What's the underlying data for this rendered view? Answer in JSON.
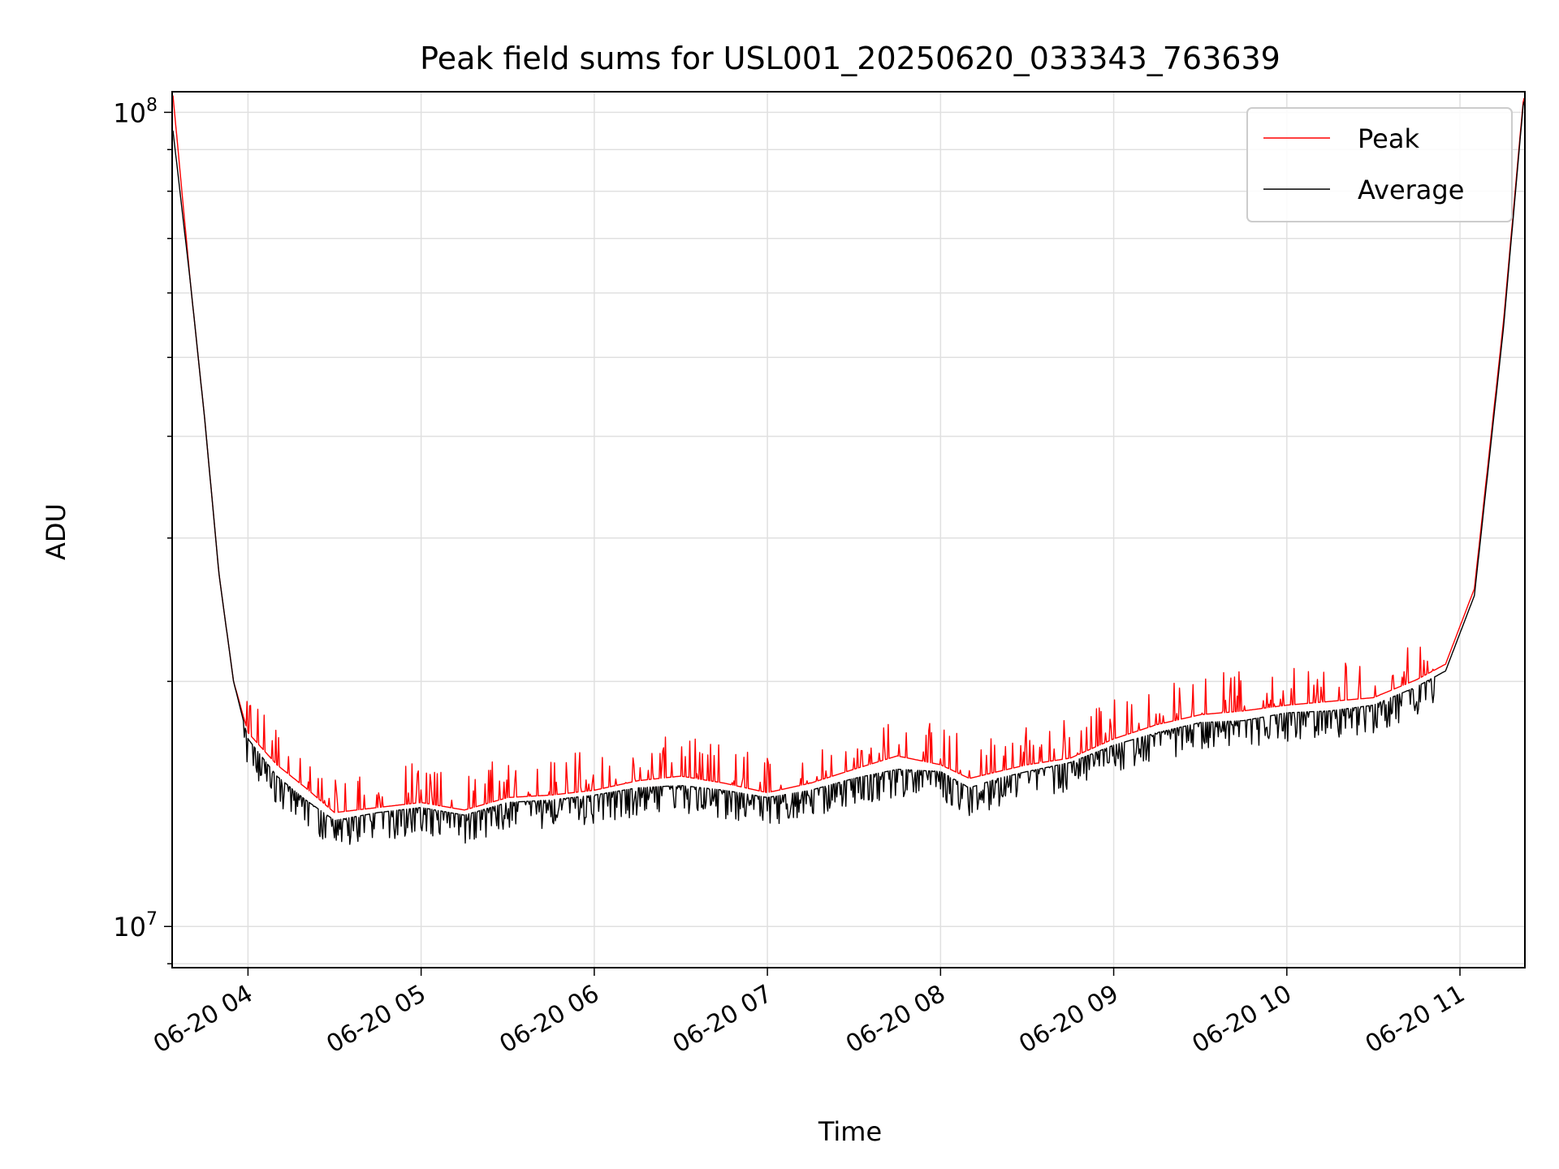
{
  "chart_data": {
    "type": "line",
    "title": "Peak field sums for USL001_20250620_033343_763639",
    "xlabel": "Time",
    "ylabel": "ADU",
    "yscale": "log",
    "ylim": [
      8900000,
      106000000
    ],
    "xlim": [
      "2025-06-20 03:33:43",
      "2025-06-20 11:22:30"
    ],
    "grid": true,
    "legend_position": "top-right",
    "x_tick_labels": [
      "06-20 04",
      "06-20 05",
      "06-20 06",
      "06-20 07",
      "06-20 08",
      "06-20 09",
      "06-20 10",
      "06-20 11"
    ],
    "x_ticks": [
      "2025-06-20 04:00",
      "2025-06-20 05:00",
      "2025-06-20 06:00",
      "2025-06-20 07:00",
      "2025-06-20 08:00",
      "2025-06-20 09:00",
      "2025-06-20 10:00",
      "2025-06-20 11:00"
    ],
    "y_tick_labels": [
      {
        "value": 10000000,
        "base": "10",
        "exp": "7"
      },
      {
        "value": 100000000,
        "base": "10",
        "exp": "8"
      }
    ],
    "series": [
      {
        "name": "Peak",
        "color": "#ff0000",
        "x": [
          "2025-06-20 03:34",
          "2025-06-20 03:40",
          "2025-06-20 03:45",
          "2025-06-20 03:50",
          "2025-06-20 03:55",
          "2025-06-20 04:00",
          "2025-06-20 04:10",
          "2025-06-20 04:20",
          "2025-06-20 04:30",
          "2025-06-20 04:45",
          "2025-06-20 05:00",
          "2025-06-20 05:15",
          "2025-06-20 05:30",
          "2025-06-20 05:45",
          "2025-06-20 06:00",
          "2025-06-20 06:15",
          "2025-06-20 06:30",
          "2025-06-20 06:45",
          "2025-06-20 07:00",
          "2025-06-20 07:15",
          "2025-06-20 07:30",
          "2025-06-20 07:45",
          "2025-06-20 08:00",
          "2025-06-20 08:10",
          "2025-06-20 08:20",
          "2025-06-20 08:30",
          "2025-06-20 08:45",
          "2025-06-20 09:00",
          "2025-06-20 09:15",
          "2025-06-20 09:30",
          "2025-06-20 09:45",
          "2025-06-20 10:00",
          "2025-06-20 10:15",
          "2025-06-20 10:30",
          "2025-06-20 10:45",
          "2025-06-20 10:55",
          "2025-06-20 11:05",
          "2025-06-20 11:15",
          "2025-06-20 11:22"
        ],
        "y": [
          105000000,
          62000000,
          42000000,
          27000000,
          20000000,
          17300000,
          15800000,
          14800000,
          13800000,
          14000000,
          14200000,
          13900000,
          14400000,
          14500000,
          14700000,
          15100000,
          15300000,
          15000000,
          14600000,
          15000000,
          15600000,
          16200000,
          15800000,
          15200000,
          15500000,
          15800000,
          16100000,
          17000000,
          17700000,
          18200000,
          18400000,
          18700000,
          18900000,
          19100000,
          20100000,
          21000000,
          26000000,
          55000000,
          104000000
        ]
      },
      {
        "name": "Average",
        "color": "#000000",
        "x": [
          "2025-06-20 03:34",
          "2025-06-20 03:40",
          "2025-06-20 03:45",
          "2025-06-20 03:50",
          "2025-06-20 03:55",
          "2025-06-20 04:00",
          "2025-06-20 04:10",
          "2025-06-20 04:20",
          "2025-06-20 04:30",
          "2025-06-20 04:45",
          "2025-06-20 05:00",
          "2025-06-20 05:15",
          "2025-06-20 05:30",
          "2025-06-20 05:45",
          "2025-06-20 06:00",
          "2025-06-20 06:15",
          "2025-06-20 06:30",
          "2025-06-20 06:45",
          "2025-06-20 07:00",
          "2025-06-20 07:15",
          "2025-06-20 07:30",
          "2025-06-20 07:45",
          "2025-06-20 08:00",
          "2025-06-20 08:10",
          "2025-06-20 08:20",
          "2025-06-20 08:30",
          "2025-06-20 08:45",
          "2025-06-20 09:00",
          "2025-06-20 09:15",
          "2025-06-20 09:30",
          "2025-06-20 09:45",
          "2025-06-20 10:00",
          "2025-06-20 10:15",
          "2025-06-20 10:30",
          "2025-06-20 10:45",
          "2025-06-20 10:55",
          "2025-06-20 11:05",
          "2025-06-20 11:15",
          "2025-06-20 11:22"
        ],
        "y": [
          95000000,
          62000000,
          42000000,
          27000000,
          20000000,
          17000000,
          15300000,
          14300000,
          13500000,
          13800000,
          14000000,
          13700000,
          14200000,
          14300000,
          14500000,
          14800000,
          14900000,
          14700000,
          14400000,
          14700000,
          15200000,
          15600000,
          15500000,
          14800000,
          15200000,
          15500000,
          15900000,
          16700000,
          17300000,
          17800000,
          17900000,
          18300000,
          18400000,
          18700000,
          19700000,
          20600000,
          25500000,
          54000000,
          103000000
        ]
      }
    ]
  }
}
